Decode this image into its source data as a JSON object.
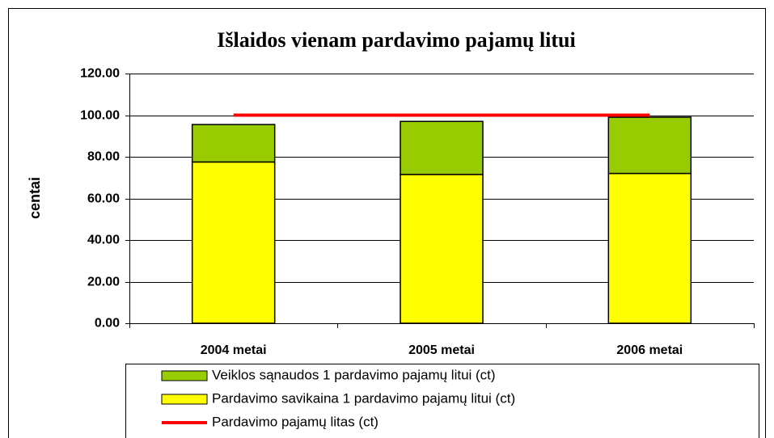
{
  "chart_data": {
    "type": "bar",
    "stacked": true,
    "title": "Išlaidos vienam pardavimo pajamų litui",
    "y_label": "centai",
    "categories": [
      "2004 metai",
      "2005 metai",
      "2006 metai"
    ],
    "series": [
      {
        "name": "Veiklos sąnaudos 1 pardavimo pajamų litui (ct)",
        "color": "#99cc00",
        "type": "bar",
        "values": [
          18,
          25.5,
          27
        ]
      },
      {
        "name": "Pardavimo savikaina 1 pardavimo pajamų litui (ct)",
        "color": "#ffff00",
        "type": "bar",
        "values": [
          77.5,
          71.5,
          72
        ]
      },
      {
        "name": "Pardavimo pajamų litas (ct)",
        "color": "#ff0000",
        "type": "line",
        "values": [
          100,
          100,
          100
        ]
      }
    ],
    "ylim": [
      0,
      120
    ],
    "yticks": [
      {
        "value": 0,
        "label": "0.00"
      },
      {
        "value": 20,
        "label": "20.00"
      },
      {
        "value": 40,
        "label": "40.00"
      },
      {
        "value": 60,
        "label": "60.00"
      },
      {
        "value": 80,
        "label": "80.00"
      },
      {
        "value": 100,
        "label": "100.00"
      },
      {
        "value": 120,
        "label": "120.00"
      }
    ],
    "grid": true,
    "legend": "bottom"
  }
}
